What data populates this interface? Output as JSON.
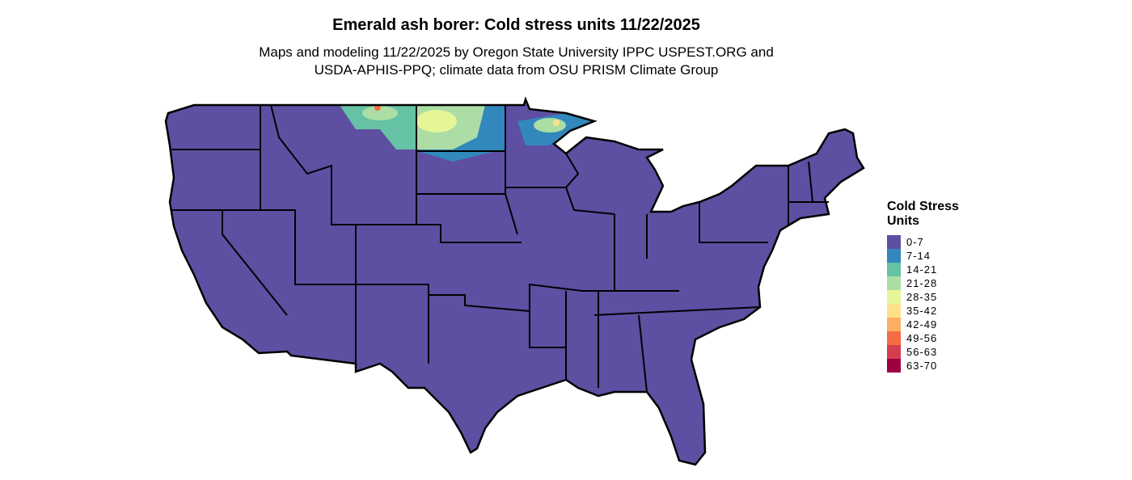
{
  "title": "Emerald ash borer: Cold stress units 11/22/2025",
  "subtitle_line1": "Maps and modeling 11/22/2025 by Oregon State University IPPC USPEST.ORG and",
  "subtitle_line2": "USDA-APHIS-PPQ; climate data from OSU PRISM Climate Group",
  "legend": {
    "title": "Cold Stress Units",
    "items": [
      {
        "label": "0-7",
        "color": "#5e4fa2"
      },
      {
        "label": "7-14",
        "color": "#3288bd"
      },
      {
        "label": "14-21",
        "color": "#66c2a5"
      },
      {
        "label": "21-28",
        "color": "#abdda4"
      },
      {
        "label": "28-35",
        "color": "#e6f598"
      },
      {
        "label": "35-42",
        "color": "#fee08b"
      },
      {
        "label": "42-49",
        "color": "#fdae61"
      },
      {
        "label": "49-56",
        "color": "#f46d43"
      },
      {
        "label": "56-63",
        "color": "#d53e4f"
      },
      {
        "label": "63-70",
        "color": "#9e0142"
      }
    ]
  }
}
